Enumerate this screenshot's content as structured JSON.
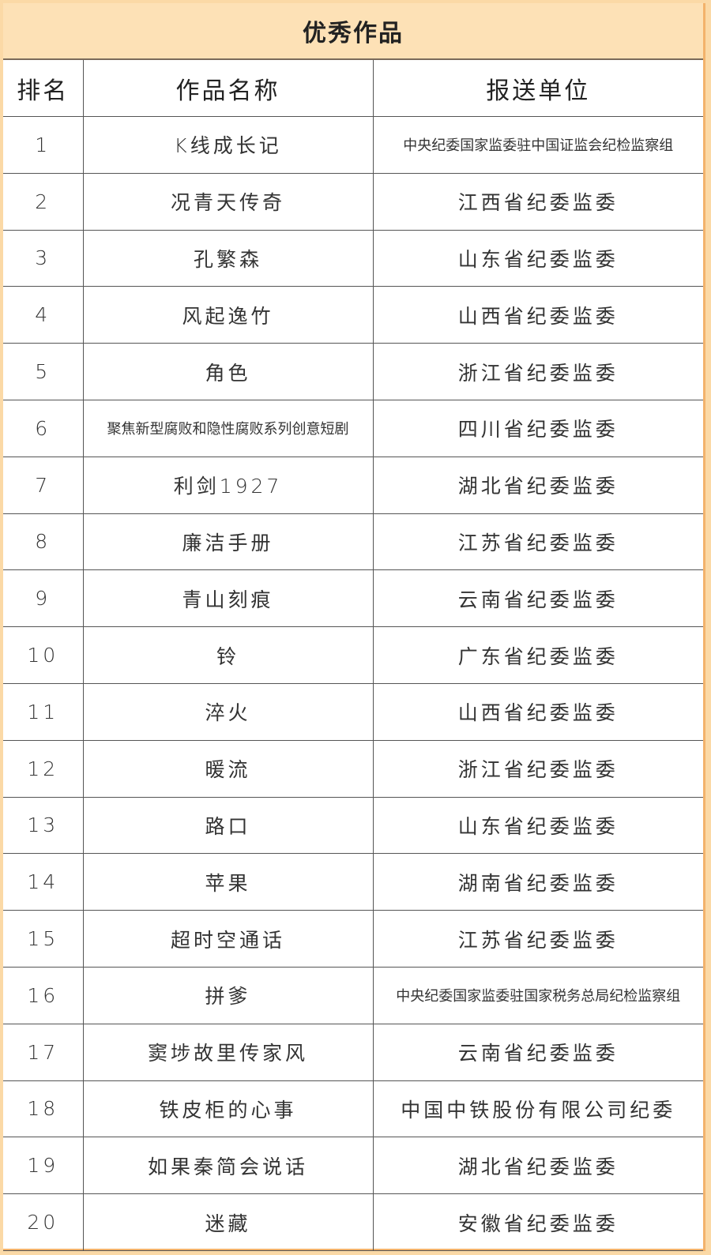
{
  "title": "优秀作品",
  "headers": [
    "排名",
    "作品名称",
    "报送单位"
  ],
  "rows": [
    {
      "rank": "1",
      "work": "K线成长记",
      "unit": "中央纪委国家监委驻中国证监会纪检监察组"
    },
    {
      "rank": "2",
      "work": "况青天传奇",
      "unit": "江西省纪委监委"
    },
    {
      "rank": "3",
      "work": "孔繁森",
      "unit": "山东省纪委监委"
    },
    {
      "rank": "4",
      "work": "风起逸竹",
      "unit": "山西省纪委监委"
    },
    {
      "rank": "5",
      "work": "角色",
      "unit": "浙江省纪委监委"
    },
    {
      "rank": "6",
      "work": "聚焦新型腐败和隐性腐败系列创意短剧",
      "unit": "四川省纪委监委"
    },
    {
      "rank": "7",
      "work": "利剑1927",
      "unit": "湖北省纪委监委"
    },
    {
      "rank": "8",
      "work": "廉洁手册",
      "unit": "江苏省纪委监委"
    },
    {
      "rank": "9",
      "work": "青山刻痕",
      "unit": "云南省纪委监委"
    },
    {
      "rank": "10",
      "work": "铃",
      "unit": "广东省纪委监委"
    },
    {
      "rank": "11",
      "work": "淬火",
      "unit": "山西省纪委监委"
    },
    {
      "rank": "12",
      "work": "暖流",
      "unit": "浙江省纪委监委"
    },
    {
      "rank": "13",
      "work": "路口",
      "unit": "山东省纪委监委"
    },
    {
      "rank": "14",
      "work": "苹果",
      "unit": "湖南省纪委监委"
    },
    {
      "rank": "15",
      "work": "超时空通话",
      "unit": "江苏省纪委监委"
    },
    {
      "rank": "16",
      "work": "拼爹",
      "unit": "中央纪委国家监委驻国家税务总局纪检监察组"
    },
    {
      "rank": "17",
      "work": "窦埗故里传家风",
      "unit": "云南省纪委监委"
    },
    {
      "rank": "18",
      "work": "铁皮柜的心事",
      "unit": "中国中铁股份有限公司纪委"
    },
    {
      "rank": "19",
      "work": "如果秦简会说话",
      "unit": "湖北省纪委监委"
    },
    {
      "rank": "20",
      "work": "迷藏",
      "unit": "安徽省纪委监委"
    }
  ]
}
